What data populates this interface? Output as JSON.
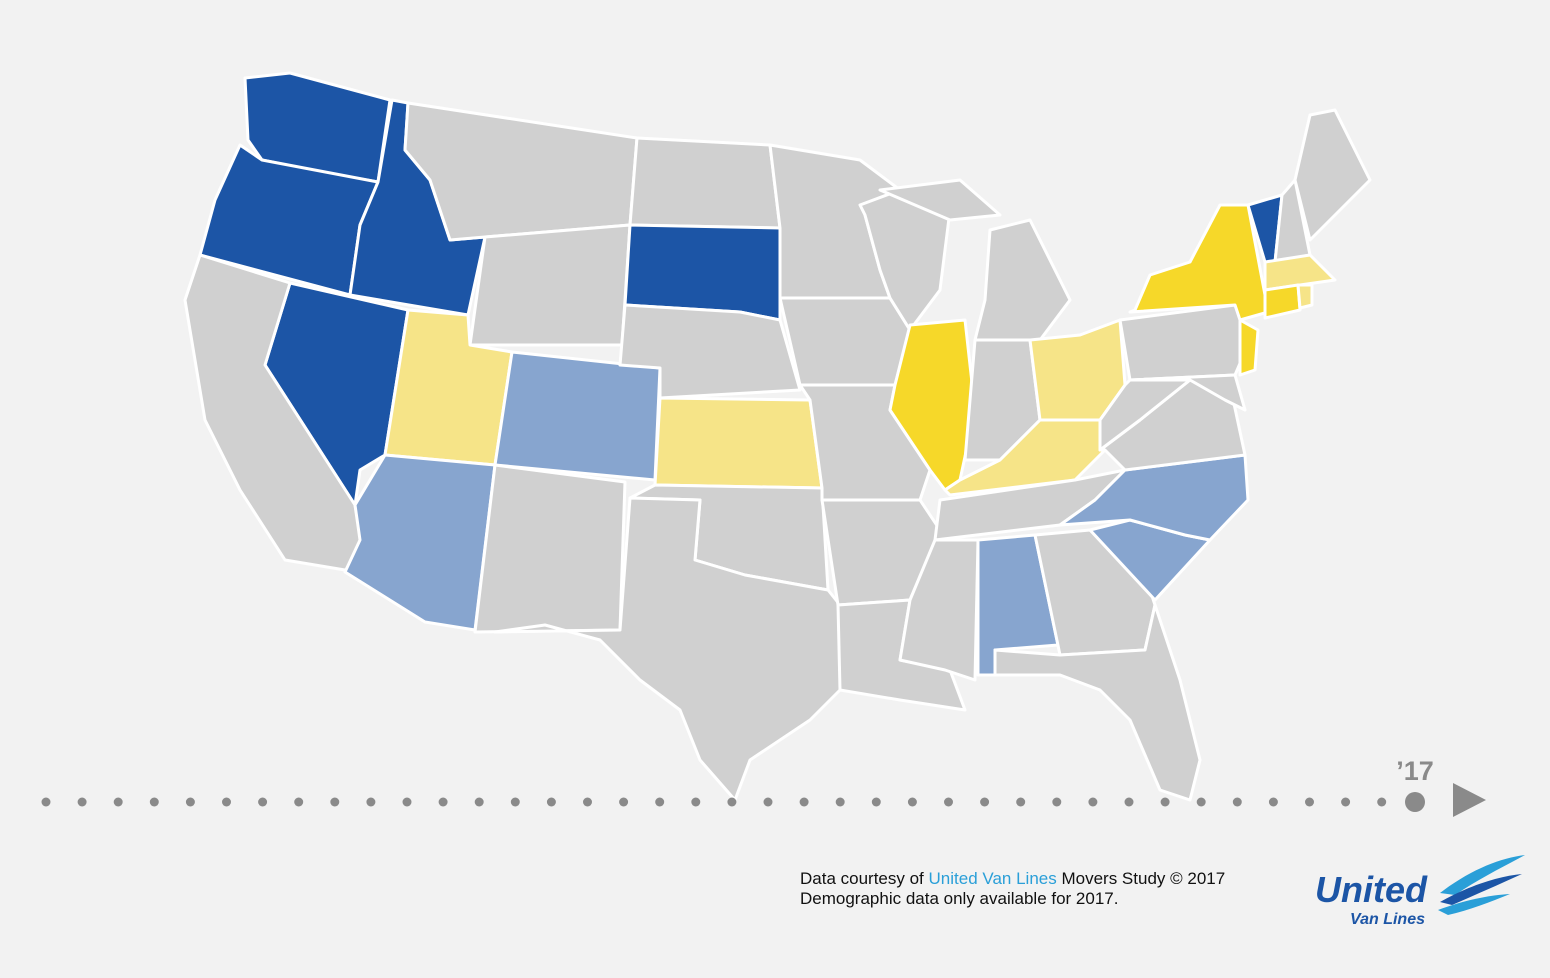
{
  "timeline": {
    "year_label": "’17"
  },
  "footer": {
    "line1": {
      "prefix": "Data courtesy of",
      "link": "United Van Lines",
      "suffix": "Movers Study © 2017"
    },
    "line2": "Demographic data only available for 2017."
  },
  "logo": {
    "name": "United",
    "subtitle": "Van Lines"
  }
}
